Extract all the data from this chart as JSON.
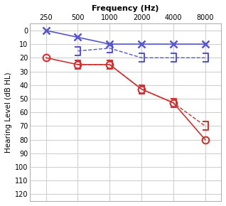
{
  "title": "Frequency (Hz)",
  "ylabel": "Hearing Level (dB HL)",
  "freqs": [
    250,
    500,
    1000,
    2000,
    4000,
    8000
  ],
  "blue_solid_x": [
    250,
    500,
    1000,
    2000,
    4000,
    8000
  ],
  "blue_solid_y": [
    0,
    5,
    10,
    10,
    10,
    10
  ],
  "blue_dash_x": [
    500,
    1000,
    2000,
    4000,
    8000
  ],
  "blue_dash_y": [
    15,
    13,
    20,
    20,
    20
  ],
  "red_solid_x": [
    250,
    500,
    1000,
    2000,
    4000,
    8000
  ],
  "red_solid_y": [
    20,
    25,
    25,
    43,
    53,
    80
  ],
  "red_dash_x": [
    500,
    1000,
    2000,
    4000,
    8000
  ],
  "red_dash_y": [
    25,
    25,
    43,
    53,
    70
  ],
  "blue_color": "#5555cc",
  "red_color": "#cc3333",
  "ylim_min": -5,
  "ylim_max": 125,
  "yticks": [
    0,
    10,
    20,
    30,
    40,
    50,
    60,
    70,
    80,
    90,
    100,
    110,
    120
  ],
  "grid_color": "#cccccc",
  "bg_color": "#ffffff",
  "title_fontsize": 8,
  "label_fontsize": 7.5,
  "tick_fontsize": 7
}
